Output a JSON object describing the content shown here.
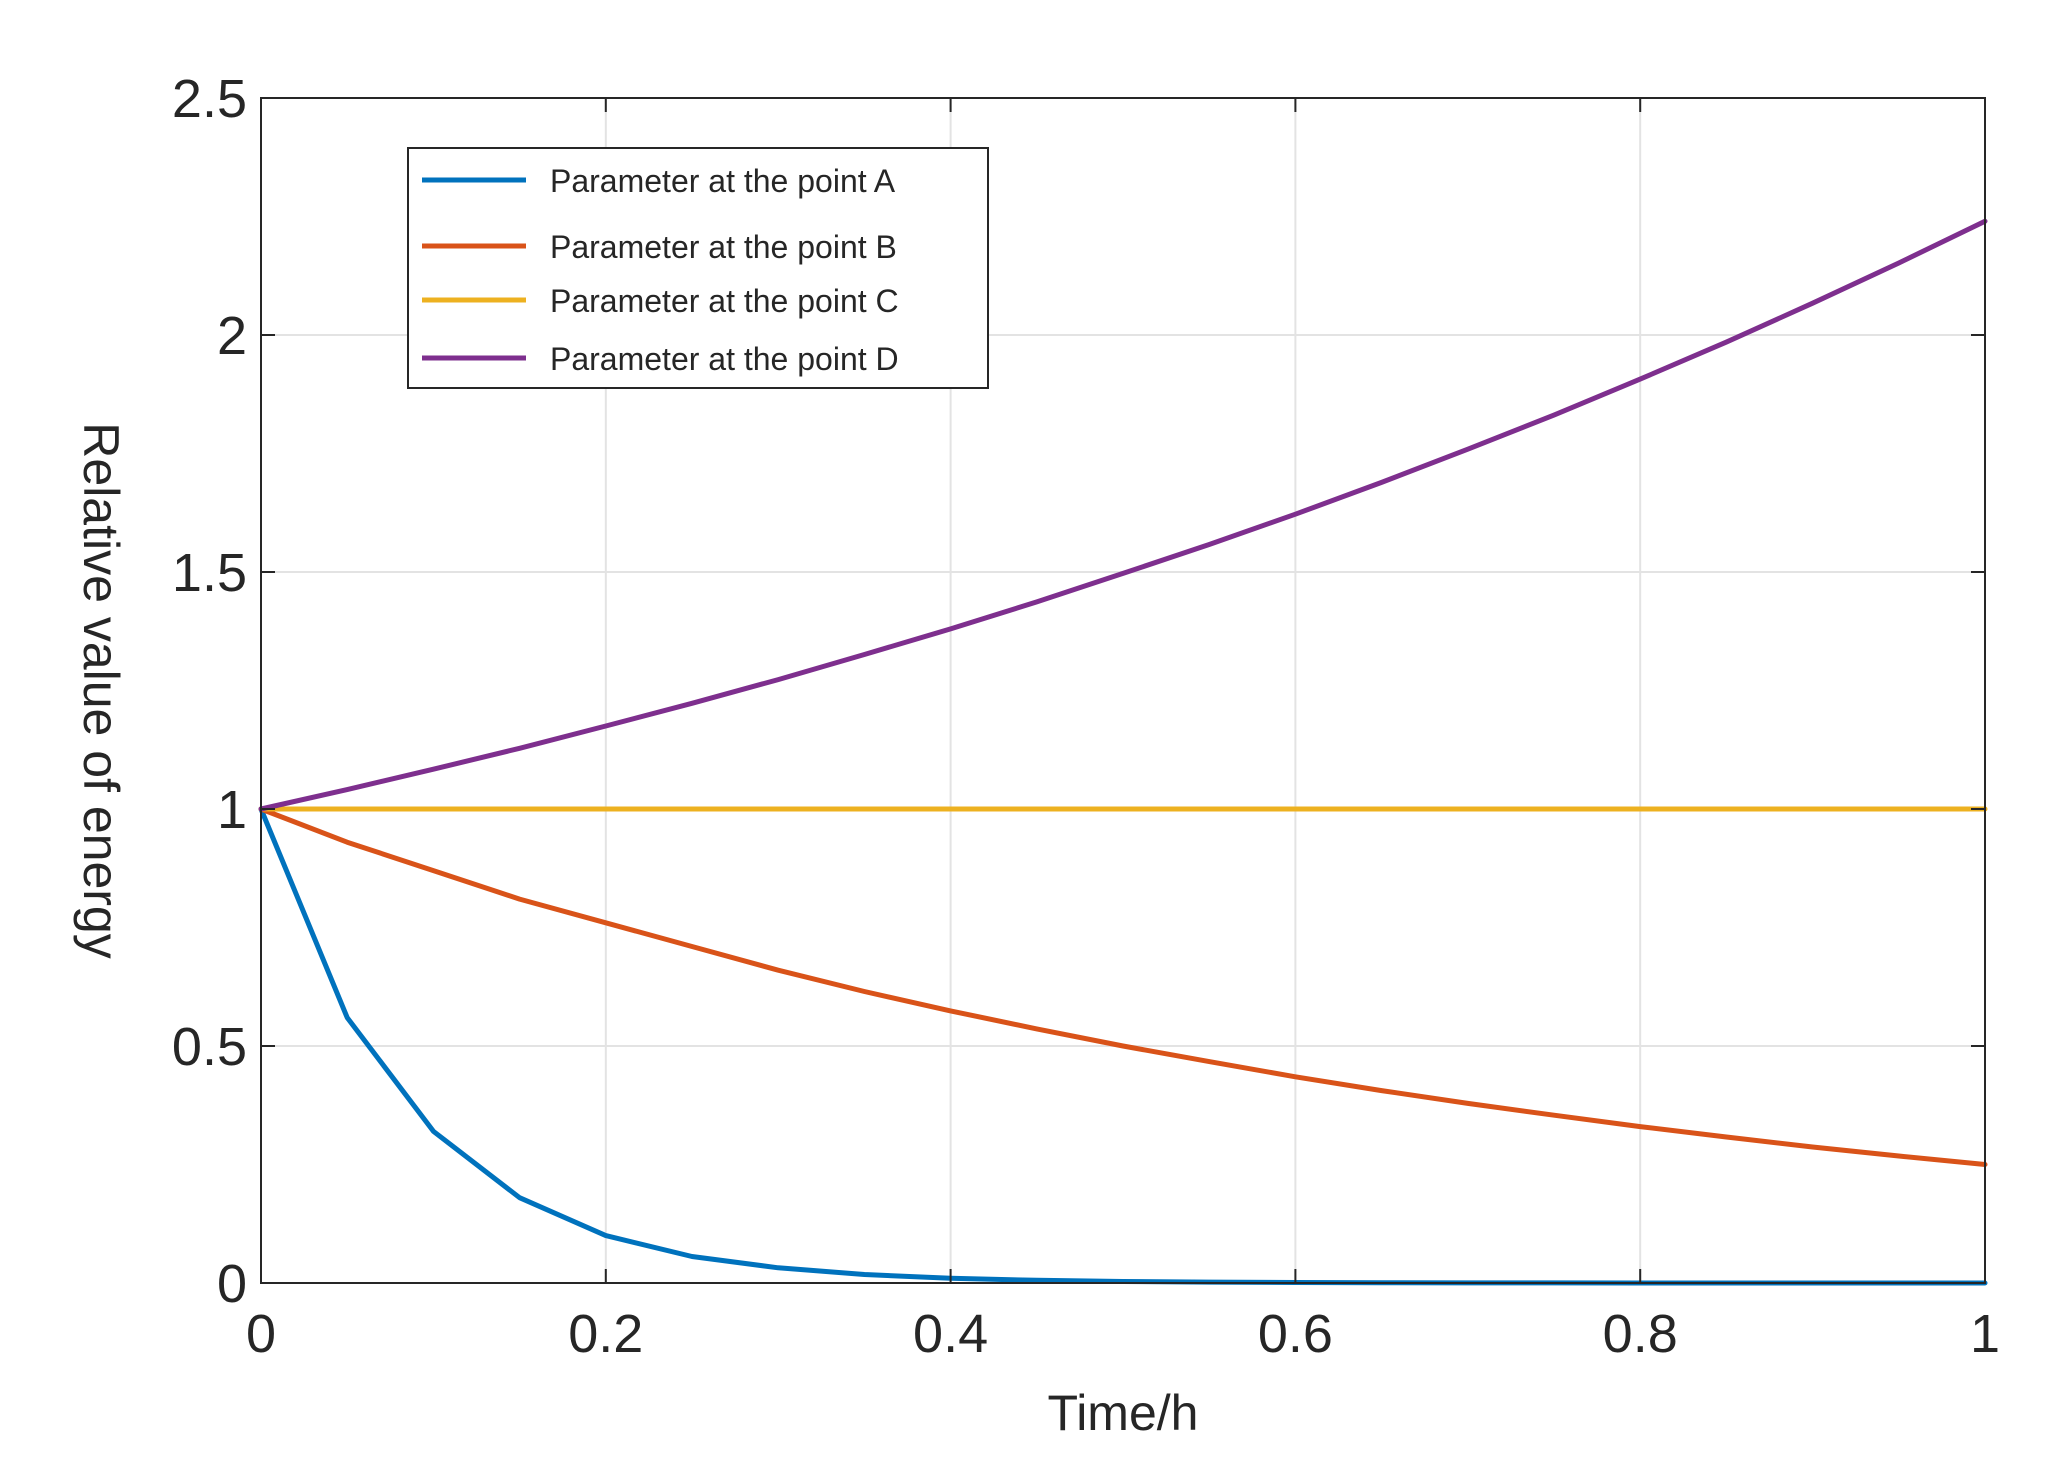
{
  "chart_data": {
    "type": "line",
    "title": "",
    "xlabel": "Time/h",
    "ylabel": "Relative value of energy",
    "xlim": [
      0,
      1
    ],
    "ylim": [
      0,
      2.5
    ],
    "xticks": [
      0,
      0.2,
      0.4,
      0.6,
      0.8,
      1
    ],
    "xtick_labels": [
      "0",
      "0.2",
      "0.4",
      "0.6",
      "0.8",
      "1"
    ],
    "yticks": [
      0,
      0.5,
      1,
      1.5,
      2,
      2.5
    ],
    "ytick_labels": [
      "0",
      "0.5",
      "1",
      "1.5",
      "2",
      "2.5"
    ],
    "grid": true,
    "legend_position": "top-left",
    "x": [
      0,
      0.05,
      0.1,
      0.15,
      0.2,
      0.25,
      0.3,
      0.35,
      0.4,
      0.45,
      0.5,
      0.55,
      0.6,
      0.65,
      0.7,
      0.75,
      0.8,
      0.85,
      0.9,
      0.95,
      1
    ],
    "series": [
      {
        "name": "Parameter at the point A",
        "color": "#0072BD",
        "values": [
          1,
          0.56,
          0.32,
          0.18,
          0.1,
          0.056,
          0.032,
          0.018,
          0.01,
          0.0056,
          0.0032,
          0.0018,
          0.001,
          0.0006,
          0.0003,
          0.0002,
          0.0001,
          0.0001,
          0,
          0,
          0
        ]
      },
      {
        "name": "Parameter at the point B",
        "color": "#D95319",
        "values": [
          1,
          0.93,
          0.87,
          0.81,
          0.76,
          0.71,
          0.66,
          0.615,
          0.574,
          0.536,
          0.5,
          0.467,
          0.435,
          0.406,
          0.379,
          0.354,
          0.33,
          0.308,
          0.287,
          0.268,
          0.25
        ]
      },
      {
        "name": "Parameter at the point C",
        "color": "#EDB120",
        "values": [
          1,
          1,
          1,
          1,
          1,
          1,
          1,
          1,
          1,
          1,
          1,
          1,
          1,
          1,
          1,
          1,
          1,
          1,
          1,
          1,
          1
        ]
      },
      {
        "name": "Parameter at the point D",
        "color": "#7E2F8E",
        "values": [
          1,
          1.041,
          1.084,
          1.128,
          1.175,
          1.223,
          1.273,
          1.326,
          1.38,
          1.437,
          1.497,
          1.558,
          1.622,
          1.689,
          1.759,
          1.831,
          1.907,
          1.985,
          2.067,
          2.152,
          2.24
        ]
      }
    ]
  }
}
